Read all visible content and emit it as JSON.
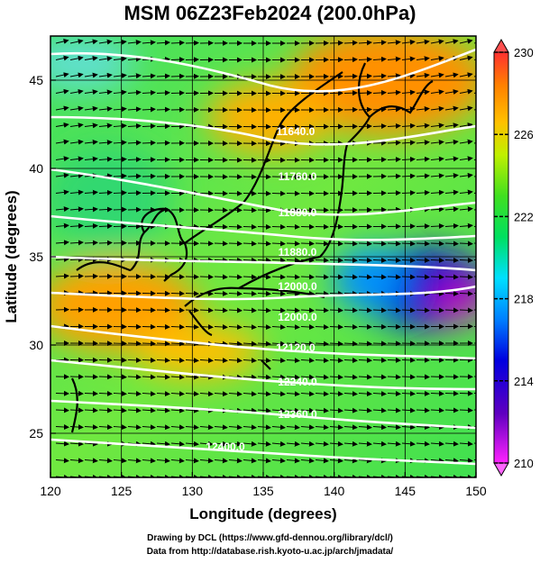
{
  "title": "MSM 06Z23Feb2024 (200.0hPa)",
  "axes": {
    "xlabel": "Longitude (degrees)",
    "ylabel": "Latitude  (degrees)",
    "xticks": [
      "120",
      "125",
      "130",
      "135",
      "140",
      "145",
      "150"
    ],
    "yticks": [
      "25",
      "30",
      "35",
      "40",
      "45"
    ],
    "xlim": [
      120,
      150
    ],
    "ylim": [
      22.5,
      47.5
    ]
  },
  "colorbar": {
    "min": 210,
    "max": 230,
    "tick_labels": [
      "230",
      "226",
      "222",
      "218",
      "214",
      "210"
    ],
    "colors": [
      "#ff22ff",
      "#6000c0",
      "#0000e0",
      "#0080ff",
      "#00e0ff",
      "#00e060",
      "#40e020",
      "#c0f000",
      "#ffc000",
      "#ff8000",
      "#ff3030"
    ]
  },
  "contours": {
    "labels": [
      "11640.0",
      "11760.0",
      "11880.0",
      "11880.0",
      "12000.0",
      "12000.0",
      "12120.0",
      "12240.0",
      "12360.0",
      "12400.0"
    ]
  },
  "credits": {
    "line1": "Drawing by DCL (https://www.gfd-dennou.org/library/dcl/)",
    "line2": "Data from http://database.rish.kyoto-u.ac.jp/arch/jmadata/"
  }
}
